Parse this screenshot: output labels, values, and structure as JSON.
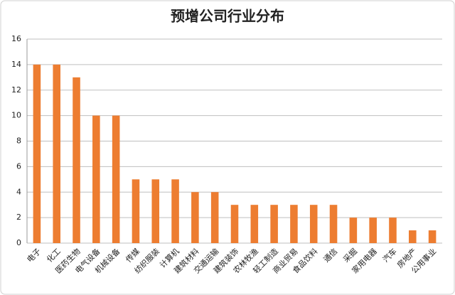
{
  "chart_data": {
    "type": "bar",
    "title": "预增公司行业分布",
    "categories": [
      "电子",
      "化工",
      "医药生物",
      "电气设备",
      "机械设备",
      "传媒",
      "纺织服装",
      "计算机",
      "建筑材料",
      "交通运输",
      "建筑装饰",
      "农林牧渔",
      "轻工制造",
      "商业贸易",
      "食品饮料",
      "通信",
      "采掘",
      "家用电器",
      "汽车",
      "房地产",
      "公用事业"
    ],
    "values": [
      14,
      14,
      13,
      10,
      10,
      5,
      5,
      5,
      4,
      4,
      3,
      3,
      3,
      3,
      3,
      3,
      2,
      2,
      2,
      1,
      1
    ],
    "color": "#ed7d31",
    "ylim": [
      0,
      16
    ],
    "yticks": [
      0,
      2,
      4,
      6,
      8,
      10,
      12,
      14,
      16
    ],
    "grid": true
  }
}
